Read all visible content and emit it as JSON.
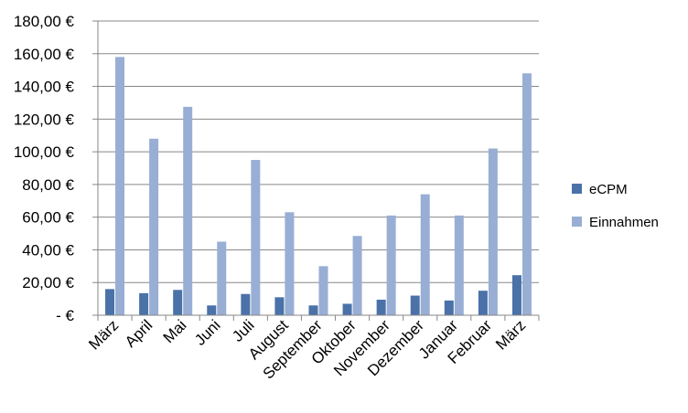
{
  "chart_data": {
    "type": "bar",
    "categories": [
      "März",
      "April",
      "Mai",
      "Juni",
      "Juli",
      "August",
      "September",
      "Oktober",
      "November",
      "Dezember",
      "Januar",
      "Februar",
      "März"
    ],
    "series": [
      {
        "name": "eCPM",
        "color": "#4a72a8",
        "values": [
          16,
          13.5,
          15.5,
          6,
          13,
          11,
          6,
          7,
          9.5,
          12,
          9,
          15,
          24.5
        ]
      },
      {
        "name": "Einnahmen",
        "color": "#98aed4",
        "values": [
          158,
          108,
          127.5,
          45,
          95,
          63,
          30,
          48.5,
          61,
          74,
          61,
          102,
          148
        ]
      }
    ],
    "y_ticks": [
      "-  €",
      "20,00 €",
      "40,00 €",
      "60,00 €",
      "80,00 €",
      "100,00 €",
      "120,00 €",
      "140,00 €",
      "160,00 €",
      "180,00 €"
    ],
    "ylim": [
      0,
      180
    ],
    "y_step": 20,
    "grid": true,
    "legend_position": "right"
  }
}
